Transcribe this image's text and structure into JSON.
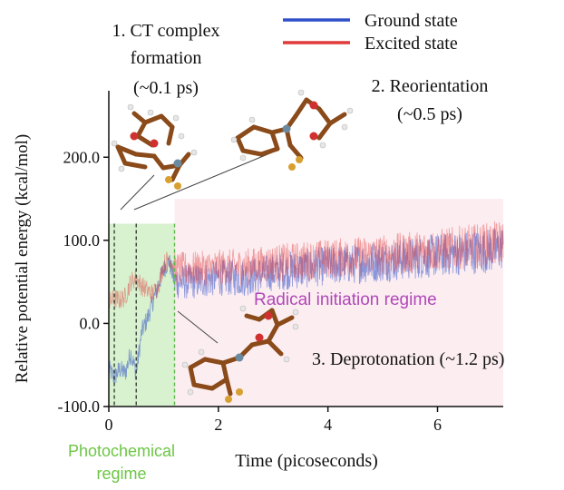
{
  "chart_data": {
    "type": "line",
    "xlabel": "Time (picoseconds)",
    "ylabel": "Relative potential energy (kcal/mol)",
    "xlim": [
      0,
      7.2
    ],
    "ylim": [
      -100,
      280
    ],
    "x_ticks": [
      0,
      2,
      4,
      6
    ],
    "x_tick_labels": [
      "0",
      "2",
      "4",
      "6"
    ],
    "y_ticks": [
      -100,
      0,
      100,
      200
    ],
    "y_tick_labels": [
      "-100.0",
      "0.0",
      "100.0",
      "200.0"
    ],
    "grid": false,
    "legend_position": "top-right",
    "series": [
      {
        "name": "Ground state",
        "color": "#3050c8",
        "x": [
          0,
          0.1,
          0.2,
          0.3,
          0.4,
          0.5,
          0.6,
          0.7,
          0.8,
          0.9,
          1.0,
          1.1,
          1.2,
          1.5,
          2.0,
          2.5,
          3.0,
          3.5,
          4.0,
          4.5,
          5.0,
          5.5,
          6.0,
          6.5,
          7.0,
          7.2
        ],
        "values": [
          -55,
          -65,
          -55,
          -60,
          -35,
          -60,
          -10,
          5,
          25,
          45,
          65,
          75,
          50,
          50,
          55,
          55,
          62,
          65,
          70,
          72,
          75,
          78,
          82,
          85,
          88,
          92
        ]
      },
      {
        "name": "Excited state",
        "color": "#e03a3a",
        "x": [
          0,
          0.1,
          0.2,
          0.3,
          0.4,
          0.5,
          0.6,
          0.7,
          0.8,
          0.9,
          1.0,
          1.1,
          1.2,
          1.5,
          2.0,
          2.5,
          3.0,
          3.5,
          4.0,
          4.5,
          5.0,
          5.5,
          6.0,
          6.5,
          7.0,
          7.2
        ],
        "values": [
          25,
          30,
          28,
          32,
          50,
          55,
          45,
          40,
          35,
          45,
          70,
          80,
          65,
          65,
          67,
          68,
          72,
          75,
          78,
          80,
          82,
          85,
          88,
          92,
          95,
          98
        ]
      }
    ],
    "markers": [
      {
        "x": 0.1,
        "style": "dashed"
      },
      {
        "x": 0.5,
        "style": "dashed"
      },
      {
        "x": 1.2,
        "style": "dashed-green"
      }
    ],
    "regions": [
      {
        "label": "Photochemical regime",
        "x_start": 0,
        "x_end": 1.2,
        "y_start": -100,
        "y_end": 120,
        "color": "#b8e6a8"
      },
      {
        "label": "Radical initiation regime",
        "x_start": 1.2,
        "x_end": 7.2,
        "y_start": -100,
        "y_end": 150,
        "color": "#fbe3ea"
      }
    ],
    "annotations": [
      {
        "text_lines": [
          "1. CT complex",
          "formation",
          "(~0.1 ps)"
        ]
      },
      {
        "text_lines": [
          "2. Reorientation",
          "(~0.5 ps)"
        ]
      },
      {
        "text_lines": [
          "3. Deprotonation (~1.2 ps)"
        ]
      }
    ],
    "region_labels": {
      "photochemical": [
        "Photochemical",
        "regime"
      ],
      "radical": "Radical initiation regime"
    },
    "colors": {
      "photochemical_label": "#6cc644",
      "radical_label": "#b048b8"
    }
  }
}
